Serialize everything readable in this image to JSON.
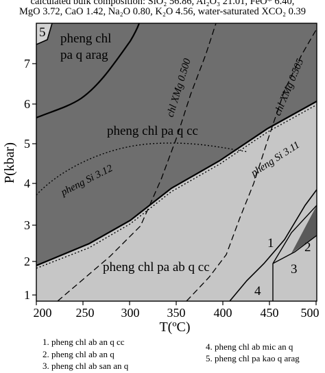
{
  "header": {
    "line1": "calculated bulk composition: SiO₂ 56.86, Al₂O₃ 21.01, FeO* 6.40,",
    "line2": "MgO 3.72, CaO 1.42, Na₂O 0.80, K₂O 4.56, water-saturated XCO₂ 0.39"
  },
  "axes": {
    "xlabel": "T(ºC)",
    "ylabel": "P(kbar)",
    "x_ticks": [
      "200",
      "250",
      "300",
      "350",
      "400",
      "450",
      "500"
    ],
    "y_ticks": [
      "1",
      "2",
      "3",
      "4",
      "5",
      "6",
      "7"
    ]
  },
  "fields": {
    "top_line1": "pheng chl",
    "top_line2": "pa q arag",
    "middle": "pheng chl pa q cc",
    "lower": "pheng chl pa ab q cc",
    "n1": "1",
    "n2": "2",
    "n3": "3",
    "n4": "4",
    "n5": "5"
  },
  "isopleths": {
    "chl_500": "chl XMg 0.500",
    "chl_505": "chl XMg 0.505",
    "si_312": "pheng Si 3.12",
    "si_311": "pheng Si 3.11"
  },
  "legend": {
    "i1": "1. pheng chl ab an q cc",
    "i2": "2. pheng chl ab an q",
    "i3": "3. pheng chl ab san an q",
    "i4": "4. pheng chl ab mic an q",
    "i5": "5. pheng chl pa kao q arag"
  },
  "colors": {
    "dark_field": "#6e6e6e",
    "light_field": "#c6c6c6",
    "darker_field": "#5a5a5a"
  }
}
